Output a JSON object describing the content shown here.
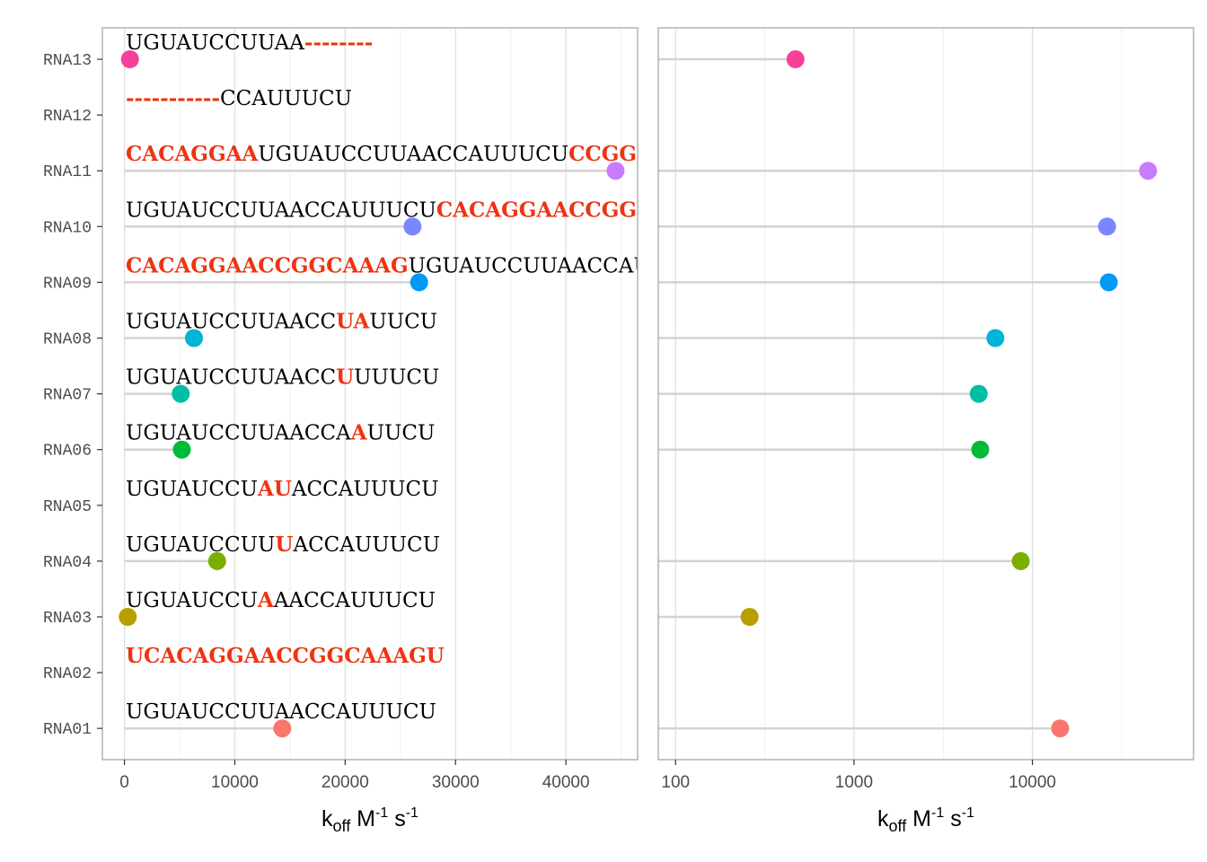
{
  "chart_data": [
    {
      "type": "scatter",
      "subtype": "lollipop",
      "scale": "linear",
      "xlabel": {
        "base": "k",
        "sub": "off",
        "mid": " M",
        "sup1": "-1",
        "mid2": " s",
        "sup2": "-1"
      },
      "xlim": [
        -2000,
        46500
      ],
      "xticks": [
        0,
        10000,
        20000,
        30000,
        40000
      ],
      "xtick_labels": [
        "0",
        "10000",
        "20000",
        "30000",
        "40000"
      ],
      "grid": true,
      "categories": [
        "RNA01",
        "RNA02",
        "RNA03",
        "RNA04",
        "RNA05",
        "RNA06",
        "RNA07",
        "RNA08",
        "RNA09",
        "RNA10",
        "RNA11",
        "RNA12",
        "RNA13"
      ],
      "points": [
        {
          "category": "RNA01",
          "value": 14300,
          "color": "#F8766D"
        },
        {
          "category": "RNA03",
          "value": 300,
          "color": "#B79F00"
        },
        {
          "category": "RNA04",
          "value": 8400,
          "color": "#7CAE00"
        },
        {
          "category": "RNA06",
          "value": 5200,
          "color": "#00BA38"
        },
        {
          "category": "RNA07",
          "value": 5100,
          "color": "#00BFA4"
        },
        {
          "category": "RNA08",
          "value": 6300,
          "color": "#00B4D8"
        },
        {
          "category": "RNA09",
          "value": 26700,
          "color": "#0099F8"
        },
        {
          "category": "RNA10",
          "value": 26100,
          "color": "#7A86FF"
        },
        {
          "category": "RNA11",
          "value": 44500,
          "color": "#C77CFF"
        },
        {
          "category": "RNA13",
          "value": 500,
          "color": "#F7409A"
        }
      ]
    },
    {
      "type": "scatter",
      "subtype": "lollipop",
      "scale": "log10",
      "xlabel": {
        "base": "k",
        "sub": "off",
        "mid": " M",
        "sup1": "-1",
        "mid2": " s",
        "sup2": "-1"
      },
      "xlim": [
        80,
        80000
      ],
      "xticks": [
        100,
        1000,
        10000
      ],
      "xtick_labels": [
        "100",
        "1000",
        "10000"
      ],
      "grid": true,
      "categories": [
        "RNA01",
        "RNA02",
        "RNA03",
        "RNA04",
        "RNA05",
        "RNA06",
        "RNA07",
        "RNA08",
        "RNA09",
        "RNA10",
        "RNA11",
        "RNA12",
        "RNA13"
      ],
      "points": [
        {
          "category": "RNA01",
          "value": 14300,
          "color": "#F8766D"
        },
        {
          "category": "RNA03",
          "value": 260,
          "color": "#B79F00"
        },
        {
          "category": "RNA04",
          "value": 8600,
          "color": "#7CAE00"
        },
        {
          "category": "RNA06",
          "value": 5100,
          "color": "#00BA38"
        },
        {
          "category": "RNA07",
          "value": 5000,
          "color": "#00BFA4"
        },
        {
          "category": "RNA08",
          "value": 6200,
          "color": "#00B4D8"
        },
        {
          "category": "RNA09",
          "value": 26800,
          "color": "#0099F8"
        },
        {
          "category": "RNA10",
          "value": 26200,
          "color": "#7A86FF"
        },
        {
          "category": "RNA11",
          "value": 44500,
          "color": "#C77CFF"
        },
        {
          "category": "RNA13",
          "value": 470,
          "color": "#F7409A"
        }
      ]
    }
  ],
  "sequences": [
    {
      "category": "RNA01",
      "segments": [
        {
          "t": "UGUAUCCUUAACCAUUUCU",
          "m": false
        }
      ]
    },
    {
      "category": "RNA02",
      "segments": [
        {
          "t": "UCACAGGAACCGGCAAAGU",
          "m": true
        }
      ]
    },
    {
      "category": "RNA03",
      "segments": [
        {
          "t": "UGUAUCCU",
          "m": false
        },
        {
          "t": "A",
          "m": true
        },
        {
          "t": "AACCAUUUCU",
          "m": false
        }
      ]
    },
    {
      "category": "RNA04",
      "segments": [
        {
          "t": "UGUAUCCUU",
          "m": false
        },
        {
          "t": "U",
          "m": true
        },
        {
          "t": "ACCAUUUCU",
          "m": false
        }
      ]
    },
    {
      "category": "RNA05",
      "segments": [
        {
          "t": "UGUAUCCU",
          "m": false
        },
        {
          "t": "AU",
          "m": true
        },
        {
          "t": "ACCAUUUCU",
          "m": false
        }
      ]
    },
    {
      "category": "RNA06",
      "segments": [
        {
          "t": "UGUAUCCUUAACCA",
          "m": false
        },
        {
          "t": "A",
          "m": true
        },
        {
          "t": "UUCU",
          "m": false
        }
      ]
    },
    {
      "category": "RNA07",
      "segments": [
        {
          "t": "UGUAUCCUUAACC",
          "m": false
        },
        {
          "t": "U",
          "m": true
        },
        {
          "t": "UUUCU",
          "m": false
        }
      ]
    },
    {
      "category": "RNA08",
      "segments": [
        {
          "t": "UGUAUCCUUAACC",
          "m": false
        },
        {
          "t": "UA",
          "m": true
        },
        {
          "t": "UUCU",
          "m": false
        }
      ]
    },
    {
      "category": "RNA09",
      "segments": [
        {
          "t": "CACAGGAACCGGCAAAG",
          "m": true
        },
        {
          "t": "UGUAUCCUUAACCAUU",
          "m": false
        }
      ]
    },
    {
      "category": "RNA10",
      "segments": [
        {
          "t": "UGUAUCCUUAACCAUUUCU",
          "m": false
        },
        {
          "t": "CACAGGAACCGGCA",
          "m": true
        }
      ]
    },
    {
      "category": "RNA11",
      "segments": [
        {
          "t": "CACAGGAA",
          "m": true
        },
        {
          "t": "UGUAUCCUUAACCAUUUCU",
          "m": false
        },
        {
          "t": "CCGGCA",
          "m": true
        }
      ]
    },
    {
      "category": "RNA12",
      "segments": [
        {
          "t": "-----------",
          "m": true
        },
        {
          "t": "CCAUUUCU",
          "m": false
        }
      ]
    },
    {
      "category": "RNA13",
      "segments": [
        {
          "t": "UGUAUCCUUAA",
          "m": false
        },
        {
          "t": "--------",
          "m": true
        }
      ]
    }
  ],
  "colors": {
    "highlight": "#EE3311",
    "sequence_text": "#000000",
    "segment_line": "#D3D3D3",
    "grid": "#DEDEDE",
    "panel_border": "#B3B3B3",
    "tick_text": "#4D4D4D"
  }
}
